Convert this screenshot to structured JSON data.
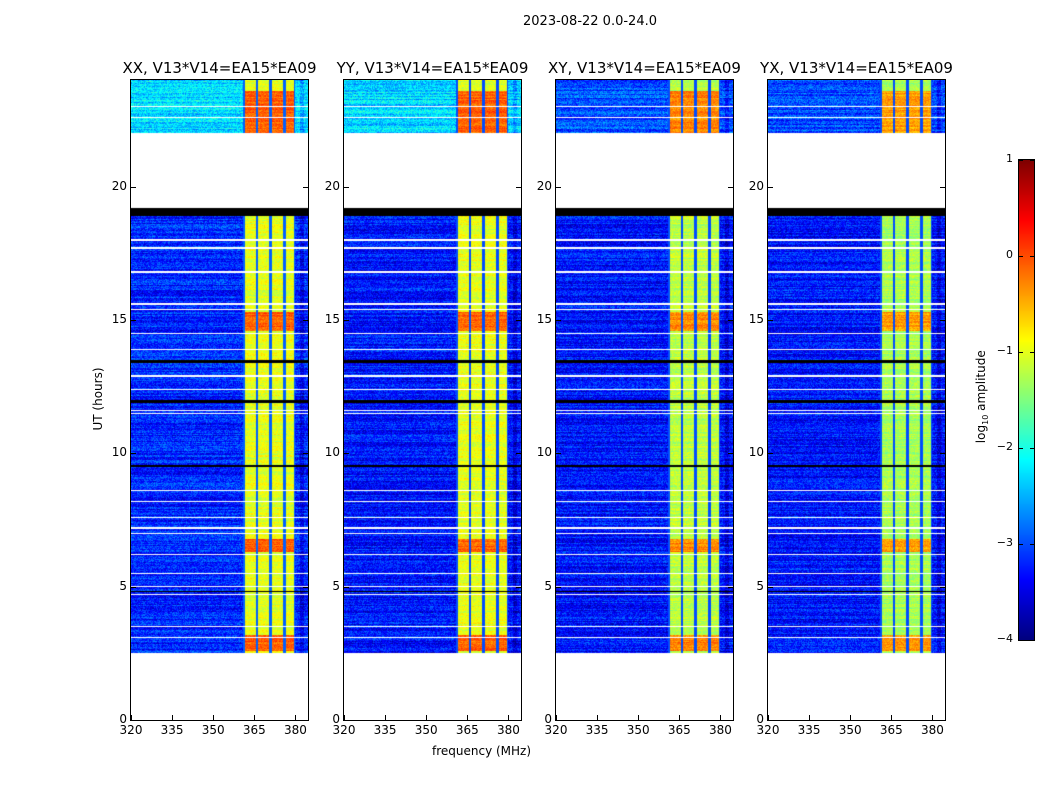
{
  "chart_data": {
    "type": "heatmap",
    "suptitle": "2023-08-22 0.0-24.0",
    "panels": [
      {
        "title": "XX, V13*V14=EA15*EA09",
        "rfi_level": -1.0,
        "quiet_level": -3.2,
        "top_level": -2.3
      },
      {
        "title": "YY, V13*V14=EA15*EA09",
        "rfi_level": -1.0,
        "quiet_level": -3.3,
        "top_level": -2.3
      },
      {
        "title": "XY, V13*V14=EA15*EA09",
        "rfi_level": -1.2,
        "quiet_level": -3.3,
        "top_level": -3.0
      },
      {
        "title": "YX, V13*V14=EA15*EA09",
        "rfi_level": -1.3,
        "quiet_level": -3.3,
        "top_level": -3.0
      }
    ],
    "xlabel": "frequency (MHz)",
    "ylabel": "UT (hours)",
    "xlim": [
      320,
      384.6
    ],
    "ylim": [
      0,
      24
    ],
    "xticks": [
      "320",
      "335",
      "350",
      "365",
      "380"
    ],
    "xtick_values": [
      320,
      335,
      350,
      365,
      380
    ],
    "yticks": [
      "0",
      "5",
      "10",
      "15",
      "20"
    ],
    "ytick_values": [
      0,
      5,
      10,
      15,
      20
    ],
    "colorbar": {
      "label_prefix": "log",
      "label_sub": "10",
      "label_suffix": " amplitude",
      "range": [
        -4,
        1
      ],
      "ticks": [
        "1",
        "0",
        "−1",
        "−2",
        "−3",
        "−4"
      ],
      "tick_values": [
        1,
        0,
        -1,
        -2,
        -3,
        -4
      ],
      "colormap": "jet"
    },
    "masked_hour_ranges": [
      [
        0,
        2.5
      ],
      [
        19.2,
        22.0
      ]
    ],
    "black_hour_ranges": [
      [
        18.9,
        19.2
      ],
      [
        11.9,
        12.0
      ],
      [
        13.4,
        13.5
      ],
      [
        9.5,
        9.55
      ],
      [
        4.8,
        4.85
      ]
    ],
    "flagged_hours": [
      23.0,
      22.6,
      18.0,
      17.7,
      16.8,
      15.6,
      15.4,
      14.5,
      13.9,
      12.9,
      12.4,
      11.6,
      11.5,
      8.6,
      8.2,
      7.6,
      7.2,
      7.0,
      6.2,
      5.5,
      5.0,
      4.7,
      3.5,
      3.1
    ],
    "rfi_band_mhz": [
      361,
      380
    ],
    "rfi_channel_edges_mhz": [
      361,
      366,
      371,
      376,
      380
    ],
    "strong_rfi_hour_ranges": [
      [
        22.0,
        23.6
      ],
      [
        14.6,
        15.3
      ],
      [
        6.3,
        6.8
      ],
      [
        2.6,
        3.2
      ]
    ]
  }
}
